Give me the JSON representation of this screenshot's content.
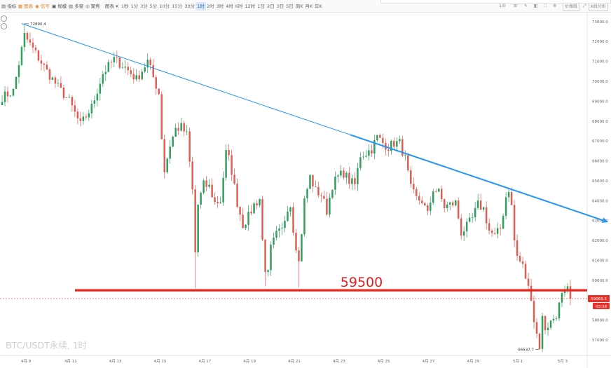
{
  "toolbar": {
    "left_items": [
      {
        "label": "指标",
        "icon": "chart-icon"
      },
      {
        "label": "图表",
        "icon": "grid-icon",
        "accent": true
      },
      {
        "label": "信号",
        "icon": "signal-icon",
        "accent": true
      },
      {
        "label": "规模",
        "icon": "scale-icon"
      },
      {
        "label": "多窗",
        "icon": "window-icon"
      },
      {
        "label": "聚焦",
        "icon": "focus-icon"
      },
      {
        "label": "图表",
        "icon": "dropdown-icon"
      }
    ],
    "timeframes": [
      "1秒",
      "1分",
      "3分",
      "5分",
      "10分",
      "15分",
      "30分",
      "1时",
      "2时",
      "3时",
      "4时",
      "6时",
      "12时",
      "1日",
      "2日",
      "3日",
      "5日",
      "周K",
      "月K",
      "年K"
    ],
    "active_timeframe": "1时",
    "right_tools": [
      "1/0",
      "价格线"
    ],
    "kline_button": "K线分析"
  },
  "chart_data": {
    "type": "candlestick",
    "symbol_watermark": "BTC/USDT永续, 1时",
    "x_labels": [
      "4月 9",
      "4月 11",
      "4月 13",
      "4月 15",
      "4月 17",
      "4月 19",
      "4月 21",
      "4月 23",
      "4月 25",
      "4月 27",
      "4月 29",
      "5月 1",
      "5月 3"
    ],
    "y_ticks": [
      "73000.0",
      "72000.0",
      "71000.0",
      "70000.0",
      "69000.0",
      "68000.0",
      "67000.0",
      "66000.0",
      "65000.0",
      "64000.0",
      "63000.0",
      "62000.0",
      "61000.0",
      "60000.0",
      "59000.0",
      "58000.0",
      "57000.0"
    ],
    "y_tick_values": [
      73000,
      72000,
      71000,
      70000,
      69000,
      68000,
      67000,
      66000,
      65000,
      64000,
      63000,
      62000,
      61000,
      60000,
      59000,
      58000,
      57000
    ],
    "high_annotation": "72890.4",
    "high_value": 72890.4,
    "low_annotation": "56537.7",
    "low_value": 56537.7,
    "support_level": 59500,
    "support_label": "59500",
    "current_price_tag": "59083.5",
    "countdown_tag": "03:38",
    "current_price": 59083.5,
    "colors": {
      "up": "#2e9e5c",
      "down": "#e25a50",
      "trendline": "#2196f3",
      "support": "#e8241c",
      "price_tag": "#e8302a"
    },
    "waypoints": [
      [
        0,
        69200
      ],
      [
        4,
        69500
      ],
      [
        8,
        72300
      ],
      [
        12,
        71400
      ],
      [
        16,
        70500
      ],
      [
        20,
        69700
      ],
      [
        24,
        69000
      ],
      [
        28,
        67800
      ],
      [
        32,
        68700
      ],
      [
        36,
        70400
      ],
      [
        40,
        71100
      ],
      [
        44,
        70700
      ],
      [
        48,
        70100
      ],
      [
        52,
        71000
      ],
      [
        56,
        69400
      ],
      [
        57,
        67200
      ],
      [
        58,
        65500
      ],
      [
        60,
        66800
      ],
      [
        62,
        67600
      ],
      [
        64,
        67700
      ],
      [
        66,
        67300
      ],
      [
        68,
        64500
      ],
      [
        69,
        61400
      ],
      [
        70,
        63800
      ],
      [
        72,
        64800
      ],
      [
        74,
        64700
      ],
      [
        76,
        63900
      ],
      [
        78,
        64000
      ],
      [
        80,
        66400
      ],
      [
        81,
        66100
      ],
      [
        82,
        65500
      ],
      [
        84,
        63900
      ],
      [
        86,
        62800
      ],
      [
        88,
        63200
      ],
      [
        90,
        63800
      ],
      [
        92,
        64100
      ],
      [
        93,
        62000
      ],
      [
        94,
        60600
      ],
      [
        95,
        60300
      ],
      [
        96,
        61600
      ],
      [
        98,
        62300
      ],
      [
        100,
        62500
      ],
      [
        102,
        63700
      ],
      [
        103,
        63800
      ],
      [
        104,
        62600
      ],
      [
        106,
        60900
      ],
      [
        108,
        64000
      ],
      [
        110,
        65200
      ],
      [
        112,
        64500
      ],
      [
        114,
        64300
      ],
      [
        116,
        63500
      ],
      [
        118,
        64800
      ],
      [
        120,
        65200
      ],
      [
        122,
        65400
      ],
      [
        124,
        65000
      ],
      [
        126,
        64800
      ],
      [
        128,
        66300
      ],
      [
        130,
        66400
      ],
      [
        132,
        66600
      ],
      [
        134,
        67200
      ],
      [
        136,
        66900
      ],
      [
        138,
        66700
      ],
      [
        140,
        66900
      ],
      [
        142,
        66900
      ],
      [
        144,
        66100
      ],
      [
        146,
        64600
      ],
      [
        148,
        64100
      ],
      [
        150,
        64000
      ],
      [
        152,
        63300
      ],
      [
        154,
        64600
      ],
      [
        156,
        64400
      ],
      [
        158,
        63700
      ],
      [
        160,
        63800
      ],
      [
        162,
        63900
      ],
      [
        164,
        62400
      ],
      [
        166,
        62700
      ],
      [
        168,
        63100
      ],
      [
        170,
        63800
      ],
      [
        172,
        63600
      ],
      [
        174,
        62500
      ],
      [
        176,
        62200
      ],
      [
        178,
        62600
      ],
      [
        180,
        64200
      ],
      [
        181,
        64600
      ],
      [
        182,
        63700
      ],
      [
        183,
        62000
      ],
      [
        184,
        61200
      ],
      [
        186,
        60700
      ],
      [
        188,
        59600
      ],
      [
        189,
        59200
      ],
      [
        190,
        58000
      ],
      [
        191,
        57300
      ],
      [
        192,
        56700
      ],
      [
        193,
        58100
      ],
      [
        194,
        57600
      ],
      [
        196,
        57900
      ],
      [
        198,
        58300
      ],
      [
        200,
        59200
      ],
      [
        202,
        59500
      ],
      [
        203,
        59083
      ]
    ]
  }
}
